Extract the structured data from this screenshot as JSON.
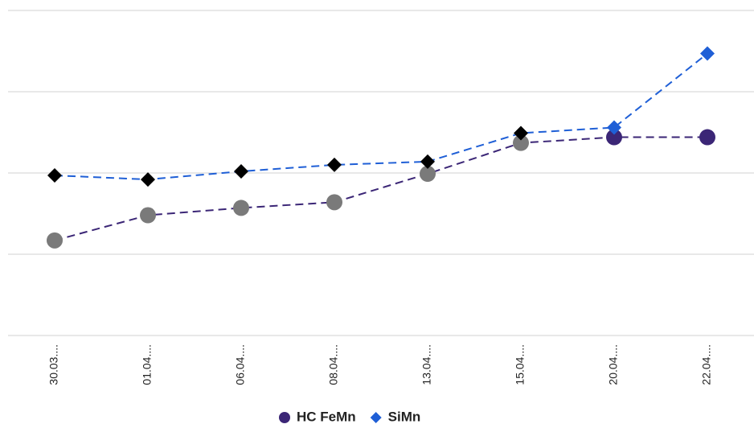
{
  "chart_data": {
    "type": "line",
    "categories": [
      "30.03....",
      "01.04....",
      "06.04....",
      "08.04....",
      "13.04....",
      "15.04....",
      "20.04....",
      "22.04...."
    ],
    "series": [
      {
        "name": "HC FeMn",
        "color": "#3b2676",
        "marker": "circle",
        "point_colors": [
          "#7a7a7a",
          "#7a7a7a",
          "#7a7a7a",
          "#7a7a7a",
          "#7a7a7a",
          "#7a7a7a",
          "#3b2676",
          "#3b2676"
        ],
        "values": [
          1.17,
          1.48,
          1.57,
          1.64,
          1.99,
          2.37,
          2.44,
          2.44
        ]
      },
      {
        "name": "SiMn",
        "color": "#1f5fd6",
        "marker": "diamond",
        "point_colors": [
          "#000000",
          "#000000",
          "#000000",
          "#000000",
          "#000000",
          "#000000",
          "#1f5fd6",
          "#1f5fd6"
        ],
        "values": [
          1.97,
          1.92,
          2.02,
          2.1,
          2.14,
          2.49,
          2.56,
          3.47
        ]
      }
    ],
    "ylim": [
      0,
      4
    ],
    "yticks": [
      0,
      1,
      2,
      3,
      4
    ],
    "grid": true,
    "legend": "bottom"
  }
}
